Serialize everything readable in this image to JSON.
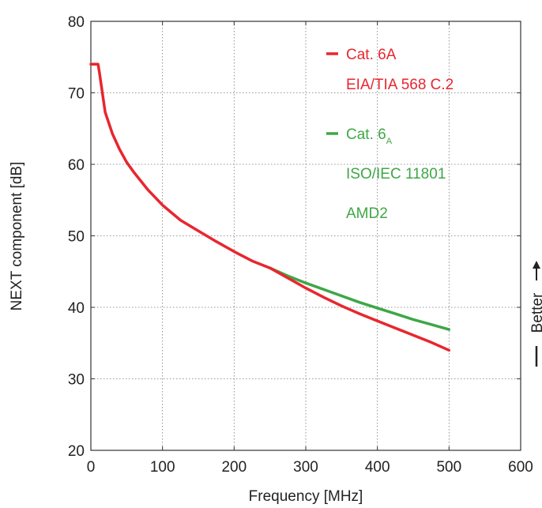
{
  "chart_data": {
    "type": "line",
    "xlabel": "Frequency [MHz]",
    "ylabel": "NEXT component [dB]",
    "xlim": [
      0,
      600
    ],
    "ylim": [
      20,
      80
    ],
    "xticks": [
      0,
      100,
      200,
      300,
      400,
      500,
      600
    ],
    "yticks": [
      20,
      30,
      40,
      50,
      60,
      70,
      80
    ],
    "xtick_labels": [
      "0",
      "100",
      "200",
      "300",
      "400",
      "500",
      "600"
    ],
    "ytick_labels": [
      "20",
      "30",
      "40",
      "50",
      "60",
      "70",
      "80"
    ],
    "grid": true,
    "legend_position": "top-right",
    "series": [
      {
        "name": "Cat. 6A",
        "name_line2": "EIA/TIA 568 C.2",
        "color": "#e8262f",
        "x": [
          0,
          10,
          12,
          20,
          30,
          40,
          50,
          60,
          80,
          100,
          125,
          150,
          175,
          200,
          225,
          250,
          275,
          300,
          325,
          350,
          375,
          400,
          425,
          450,
          475,
          500
        ],
        "y": [
          74,
          74,
          72.8,
          67.3,
          64.3,
          62.1,
          60.3,
          58.9,
          56.4,
          54.3,
          52.2,
          50.7,
          49.2,
          47.8,
          46.5,
          45.5,
          44.1,
          42.7,
          41.4,
          40.2,
          39.1,
          38.1,
          37.1,
          36.1,
          35.1,
          34.0
        ]
      },
      {
        "name": "Cat. 6",
        "name_subscript": "A",
        "name_line2": "ISO/IEC 11801",
        "name_line3": "AMD2",
        "color": "#3ea746",
        "x": [
          250,
          275,
          300,
          325,
          350,
          375,
          400,
          425,
          450,
          475,
          500
        ],
        "y": [
          45.5,
          44.4,
          43.4,
          42.5,
          41.6,
          40.7,
          39.9,
          39.1,
          38.3,
          37.6,
          36.9
        ]
      }
    ],
    "annotation": "Better"
  }
}
